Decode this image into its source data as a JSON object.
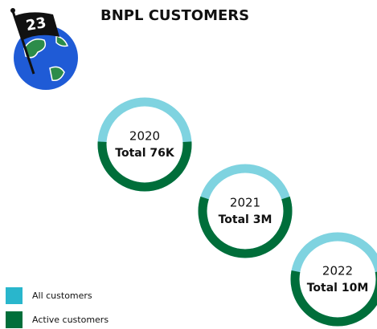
{
  "logo": {
    "badge": "23"
  },
  "chart_data": {
    "type": "donut",
    "title": "BNPL CUSTOMERS",
    "categories": [
      "2020",
      "2021",
      "2022"
    ],
    "series": [
      {
        "name": "All customers",
        "color": "#29b6cc",
        "values": [
          100,
          100,
          100
        ]
      },
      {
        "name": "Active customers",
        "color": "#006e3a",
        "values": [
          52,
          60,
          56
        ]
      }
    ],
    "totals": {
      "values": [
        76000,
        3000000,
        10000000
      ],
      "value_labels": [
        "Total 76K",
        "Total 3M",
        "Total 10M"
      ]
    }
  }
}
